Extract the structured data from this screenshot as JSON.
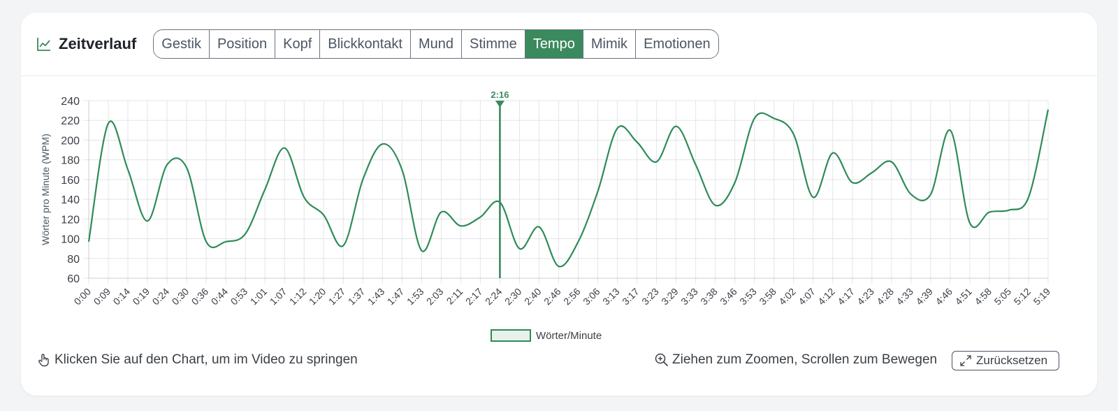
{
  "header": {
    "title": "Zeitverlauf",
    "title_icon": "line-chart-icon",
    "tabs": [
      {
        "label": "Gestik",
        "active": false
      },
      {
        "label": "Position",
        "active": false
      },
      {
        "label": "Kopf",
        "active": false
      },
      {
        "label": "Blickkontakt",
        "active": false
      },
      {
        "label": "Mund",
        "active": false
      },
      {
        "label": "Stimme",
        "active": false
      },
      {
        "label": "Tempo",
        "active": true
      },
      {
        "label": "Mimik",
        "active": false
      },
      {
        "label": "Emotionen",
        "active": false
      }
    ]
  },
  "colors": {
    "accent": "#3b8a5e",
    "line": "#2e8b57",
    "grid": "#e3e5e8",
    "legend_fill": "#e8f2ec"
  },
  "chart_data": {
    "type": "line",
    "ylabel": "Wörter pro Minute (WPM)",
    "ylim": [
      60,
      240
    ],
    "yticks": [
      60,
      80,
      100,
      120,
      140,
      160,
      180,
      200,
      220,
      240
    ],
    "grid": true,
    "legend_position": "bottom-center",
    "categories": [
      "0:00",
      "0:09",
      "0:14",
      "0:19",
      "0:24",
      "0:30",
      "0:36",
      "0:44",
      "0:53",
      "1:01",
      "1:07",
      "1:12",
      "1:20",
      "1:27",
      "1:37",
      "1:43",
      "1:47",
      "1:53",
      "2:03",
      "2:11",
      "2:17",
      "2:24",
      "2:30",
      "2:40",
      "2:46",
      "2:56",
      "3:06",
      "3:13",
      "3:17",
      "3:23",
      "3:29",
      "3:33",
      "3:38",
      "3:46",
      "3:53",
      "3:58",
      "4:02",
      "4:07",
      "4:12",
      "4:17",
      "4:23",
      "4:28",
      "4:33",
      "4:39",
      "4:46",
      "4:51",
      "4:58",
      "5:05",
      "5:12",
      "5:19"
    ],
    "series": [
      {
        "name": "Wörter/Minute",
        "values": [
          97,
          217,
          170,
          118,
          175,
          172,
          97,
          97,
          105,
          150,
          192,
          142,
          124,
          93,
          160,
          196,
          170,
          88,
          127,
          113,
          122,
          137,
          90,
          112,
          72,
          97,
          148,
          212,
          198,
          178,
          214,
          175,
          134,
          157,
          222,
          222,
          206,
          142,
          187,
          157,
          167,
          178,
          145,
          145,
          210,
          116,
          127,
          129,
          142,
          231
        ]
      }
    ],
    "marker": {
      "label": "2:16",
      "position_index": 21
    }
  },
  "footer": {
    "hint_left": "Klicken Sie auf den Chart, um im Video zu springen",
    "hint_left_icon": "pointer-hand-icon",
    "hint_right": "Ziehen zum Zoomen, Scrollen zum Bewegen",
    "hint_right_icon": "zoom-in-icon",
    "reset_label": "Zurücksetzen",
    "reset_icon": "expand-icon"
  }
}
